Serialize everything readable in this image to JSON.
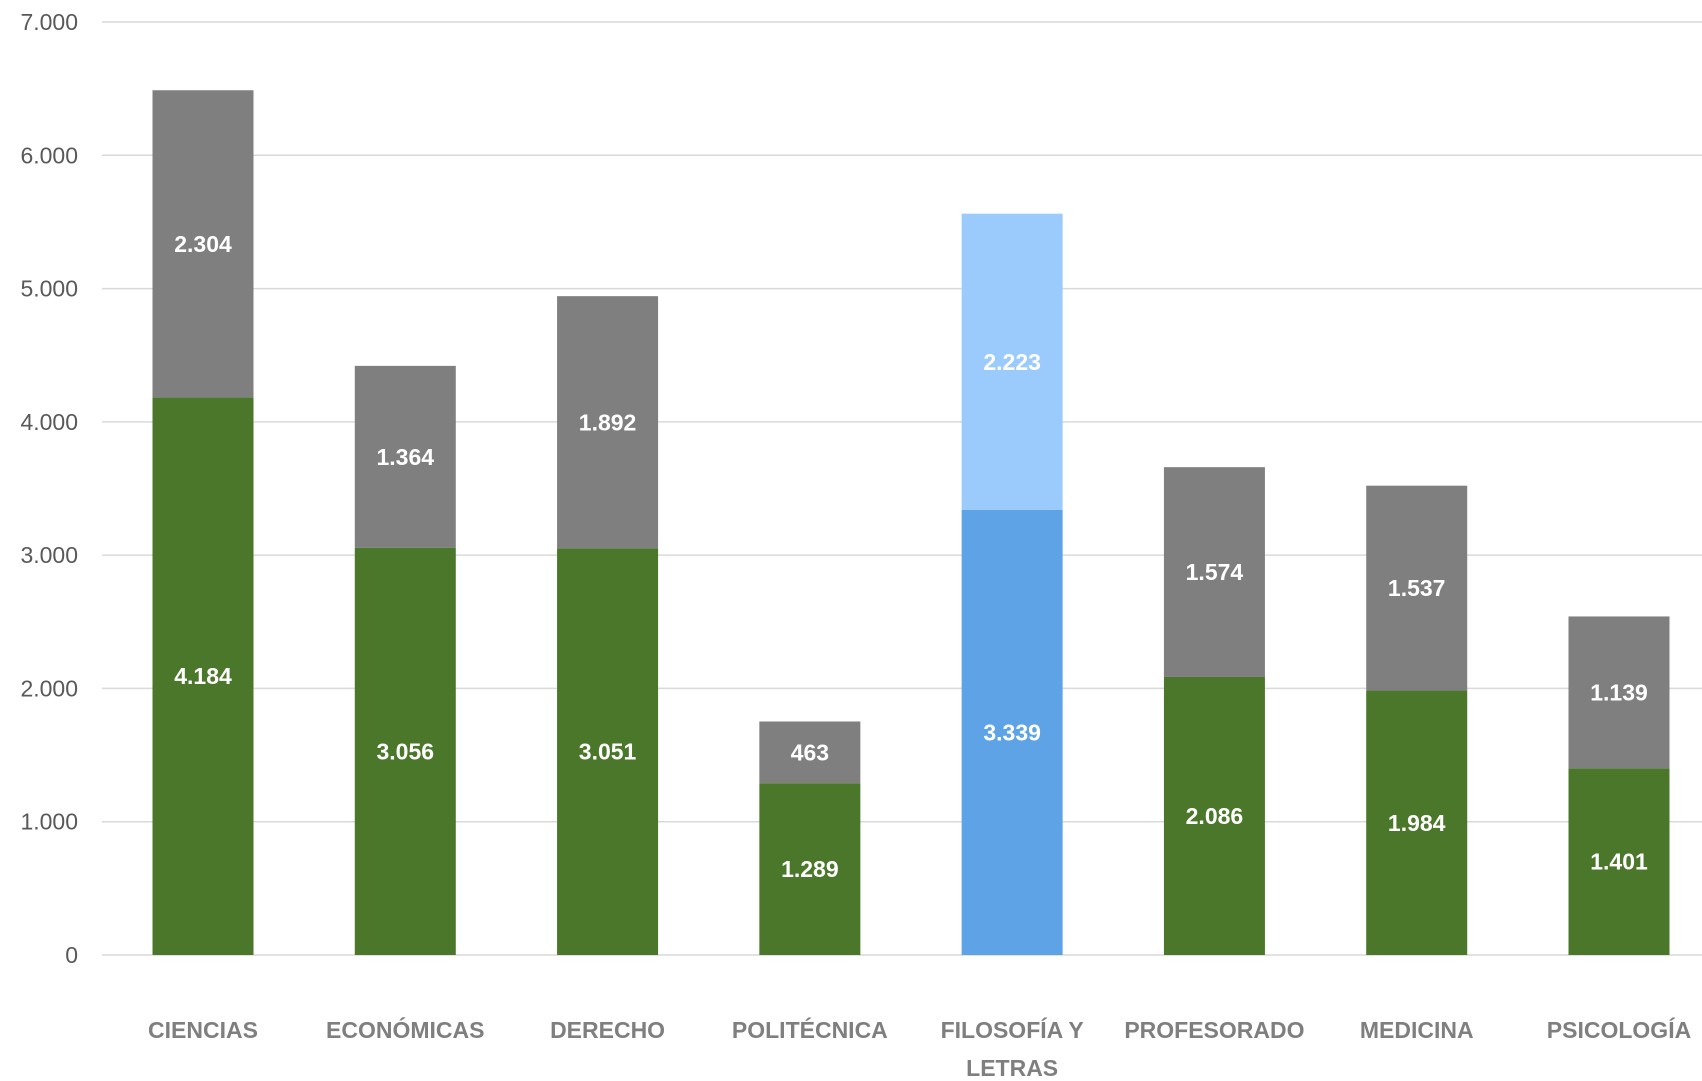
{
  "chart_data": {
    "type": "bar",
    "stacked": true,
    "categories": [
      "CIENCIAS",
      "ECONÓMICAS",
      "DERECHO",
      "POLITÉCNICA",
      "FILOSOFÍA Y LETRAS",
      "PROFESORADO",
      "MEDICINA",
      "PSICOLOGÍA"
    ],
    "category_label_lines": [
      [
        "CIENCIAS"
      ],
      [
        "ECONÓMICAS"
      ],
      [
        "DERECHO"
      ],
      [
        "POLITÉCNICA"
      ],
      [
        "FILOSOFÍA Y",
        "LETRAS"
      ],
      [
        "PROFESORADO"
      ],
      [
        "MEDICINA"
      ],
      [
        "PSICOLOGÍA"
      ]
    ],
    "series": [
      {
        "values": [
          4184,
          3056,
          3051,
          1289,
          3339,
          2086,
          1984,
          1401
        ],
        "labels": [
          "4.184",
          "3.056",
          "3.051",
          "1.289",
          "3.339",
          "2.086",
          "1.984",
          "1.401"
        ]
      },
      {
        "values": [
          2304,
          1364,
          1892,
          463,
          2223,
          1574,
          1537,
          1139
        ],
        "labels": [
          "2.304",
          "1.364",
          "1.892",
          "463",
          "2.223",
          "1.574",
          "1.537",
          "1.139"
        ]
      }
    ],
    "colors": {
      "series_bottom": "#4a7729",
      "series_top": "#7f7f7f",
      "highlight_bottom": "#5ea3e6",
      "highlight_top": "#9bcbfc"
    },
    "highlight_index": 4,
    "ylim": [
      0,
      7000
    ],
    "yticks": [
      0,
      1000,
      2000,
      3000,
      4000,
      5000,
      6000,
      7000
    ],
    "ytick_labels": [
      "0",
      "1.000",
      "2.000",
      "3.000",
      "4.000",
      "5.000",
      "6.000",
      "7.000"
    ],
    "grid": true,
    "legend": "none",
    "title": "",
    "xlabel": "",
    "ylabel": ""
  }
}
